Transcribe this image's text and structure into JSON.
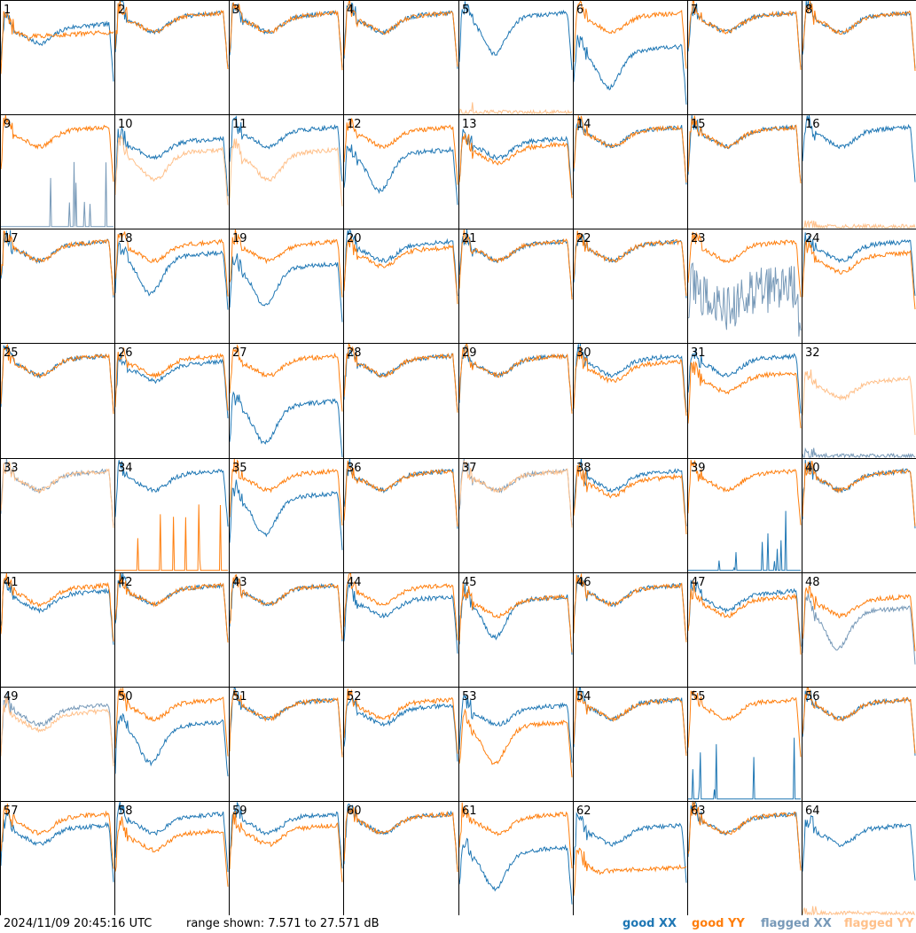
{
  "chart_data": {
    "type": "line",
    "panel_count": 64,
    "panel_labels": [
      "1",
      "2",
      "3",
      "4",
      "5",
      "6",
      "7",
      "8",
      "9",
      "10",
      "11",
      "12",
      "13",
      "14",
      "15",
      "16",
      "17",
      "18",
      "19",
      "20",
      "21",
      "22",
      "23",
      "24",
      "25",
      "26",
      "27",
      "28",
      "29",
      "30",
      "31",
      "32",
      "33",
      "34",
      "35",
      "36",
      "37",
      "38",
      "39",
      "40",
      "41",
      "42",
      "43",
      "44",
      "45",
      "46",
      "47",
      "48",
      "49",
      "50",
      "51",
      "52",
      "53",
      "54",
      "55",
      "56",
      "57",
      "58",
      "59",
      "60",
      "61",
      "62",
      "63",
      "64"
    ],
    "series_names": [
      "good XX",
      "good YY",
      "flagged XX",
      "flagged YY"
    ],
    "ylim": [
      7.571,
      27.571
    ],
    "y_unit": "dB",
    "panels": [
      {
        "xx": {
          "st": "g",
          "p": "norm",
          "l": 22
        },
        "yy": {
          "st": "g",
          "p": "crash",
          "l": 22
        }
      },
      {
        "xx": {
          "st": "g",
          "p": "norm",
          "l": 24
        },
        "yy": {
          "st": "g",
          "p": "norm",
          "l": 24
        }
      },
      {
        "xx": {
          "st": "g",
          "p": "norm",
          "l": 24
        },
        "yy": {
          "st": "g",
          "p": "norm",
          "l": 24
        }
      },
      {
        "xx": {
          "st": "g",
          "p": "norm",
          "l": 24
        },
        "yy": {
          "st": "g",
          "p": "norm",
          "l": 24
        }
      },
      {
        "xx": {
          "st": "g",
          "p": "dip",
          "l": 24
        },
        "yy": {
          "st": "f",
          "p": "low",
          "l": 8
        }
      },
      {
        "xx": {
          "st": "g",
          "p": "dip",
          "l": 18
        },
        "yy": {
          "st": "g",
          "p": "norm",
          "l": 24
        }
      },
      {
        "xx": {
          "st": "g",
          "p": "norm",
          "l": 24
        },
        "yy": {
          "st": "g",
          "p": "norm",
          "l": 24
        }
      },
      {
        "xx": {
          "st": "g",
          "p": "norm",
          "l": 24
        },
        "yy": {
          "st": "g",
          "p": "norm",
          "l": 24
        }
      },
      {
        "xx": {
          "st": "f",
          "p": "spikes",
          "l": 8
        },
        "yy": {
          "st": "g",
          "p": "norm",
          "l": 24
        }
      },
      {
        "xx": {
          "st": "g",
          "p": "norm",
          "l": 22
        },
        "yy": {
          "st": "f",
          "p": "sag",
          "l": 20
        }
      },
      {
        "xx": {
          "st": "g",
          "p": "norm",
          "l": 24
        },
        "yy": {
          "st": "f",
          "p": "sag",
          "l": 20
        }
      },
      {
        "xx": {
          "st": "g",
          "p": "dip",
          "l": 20
        },
        "yy": {
          "st": "g",
          "p": "norm",
          "l": 24
        }
      },
      {
        "xx": {
          "st": "g",
          "p": "norm",
          "l": 22
        },
        "yy": {
          "st": "g",
          "p": "norm",
          "l": 21
        }
      },
      {
        "xx": {
          "st": "g",
          "p": "norm",
          "l": 24
        },
        "yy": {
          "st": "g",
          "p": "norm",
          "l": 24
        }
      },
      {
        "xx": {
          "st": "g",
          "p": "norm",
          "l": 24
        },
        "yy": {
          "st": "g",
          "p": "norm",
          "l": 24
        }
      },
      {
        "xx": {
          "st": "g",
          "p": "norm",
          "l": 24
        },
        "yy": {
          "st": "f",
          "p": "low",
          "l": 8
        }
      },
      {
        "xx": {
          "st": "g",
          "p": "norm",
          "l": 24
        },
        "yy": {
          "st": "g",
          "p": "norm",
          "l": 24
        }
      },
      {
        "xx": {
          "st": "g",
          "p": "dip",
          "l": 22
        },
        "yy": {
          "st": "g",
          "p": "norm",
          "l": 24
        }
      },
      {
        "xx": {
          "st": "g",
          "p": "dip",
          "l": 20
        },
        "yy": {
          "st": "g",
          "p": "norm",
          "l": 24
        }
      },
      {
        "xx": {
          "st": "g",
          "p": "norm",
          "l": 24
        },
        "yy": {
          "st": "g",
          "p": "norm",
          "l": 23
        }
      },
      {
        "xx": {
          "st": "g",
          "p": "norm",
          "l": 24
        },
        "yy": {
          "st": "g",
          "p": "norm",
          "l": 24
        }
      },
      {
        "xx": {
          "st": "g",
          "p": "norm",
          "l": 24
        },
        "yy": {
          "st": "g",
          "p": "norm",
          "l": 24
        }
      },
      {
        "xx": {
          "st": "f",
          "p": "noisy",
          "l": 16
        },
        "yy": {
          "st": "g",
          "p": "norm",
          "l": 24
        }
      },
      {
        "xx": {
          "st": "g",
          "p": "norm",
          "l": 24
        },
        "yy": {
          "st": "g",
          "p": "norm",
          "l": 22
        }
      },
      {
        "xx": {
          "st": "g",
          "p": "norm",
          "l": 24
        },
        "yy": {
          "st": "g",
          "p": "norm",
          "l": 24
        }
      },
      {
        "xx": {
          "st": "g",
          "p": "norm",
          "l": 23
        },
        "yy": {
          "st": "g",
          "p": "norm",
          "l": 24
        }
      },
      {
        "xx": {
          "st": "g",
          "p": "dip",
          "l": 16
        },
        "yy": {
          "st": "g",
          "p": "norm",
          "l": 24
        }
      },
      {
        "xx": {
          "st": "g",
          "p": "norm",
          "l": 24
        },
        "yy": {
          "st": "g",
          "p": "norm",
          "l": 24
        }
      },
      {
        "xx": {
          "st": "g",
          "p": "norm",
          "l": 24
        },
        "yy": {
          "st": "g",
          "p": "norm",
          "l": 24
        }
      },
      {
        "xx": {
          "st": "g",
          "p": "norm",
          "l": 24
        },
        "yy": {
          "st": "g",
          "p": "norm",
          "l": 23
        }
      },
      {
        "xx": {
          "st": "g",
          "p": "norm",
          "l": 24
        },
        "yy": {
          "st": "g",
          "p": "norm",
          "l": 21
        }
      },
      {
        "xx": {
          "st": "f",
          "p": "low",
          "l": 8
        },
        "yy": {
          "st": "f",
          "p": "norm",
          "l": 20
        }
      },
      {
        "xx": {
          "st": "f",
          "p": "norm",
          "l": 24
        },
        "yy": {
          "st": "f",
          "p": "norm",
          "l": 24
        }
      },
      {
        "xx": {
          "st": "g",
          "p": "norm",
          "l": 24
        },
        "yy": {
          "st": "g",
          "p": "spikes",
          "l": 8
        }
      },
      {
        "xx": {
          "st": "g",
          "p": "dip",
          "l": 20
        },
        "yy": {
          "st": "g",
          "p": "norm",
          "l": 24
        }
      },
      {
        "xx": {
          "st": "g",
          "p": "norm",
          "l": 24
        },
        "yy": {
          "st": "g",
          "p": "norm",
          "l": 24
        }
      },
      {
        "xx": {
          "st": "f",
          "p": "norm",
          "l": 24
        },
        "yy": {
          "st": "f",
          "p": "norm",
          "l": 24
        }
      },
      {
        "xx": {
          "st": "g",
          "p": "norm",
          "l": 24
        },
        "yy": {
          "st": "g",
          "p": "norm",
          "l": 23
        }
      },
      {
        "xx": {
          "st": "g",
          "p": "spikes",
          "l": 8
        },
        "yy": {
          "st": "g",
          "p": "norm",
          "l": 24
        }
      },
      {
        "xx": {
          "st": "g",
          "p": "norm",
          "l": 24
        },
        "yy": {
          "st": "g",
          "p": "norm",
          "l": 24
        }
      },
      {
        "xx": {
          "st": "g",
          "p": "norm",
          "l": 23
        },
        "yy": {
          "st": "g",
          "p": "norm",
          "l": 24
        }
      },
      {
        "xx": {
          "st": "g",
          "p": "norm",
          "l": 24
        },
        "yy": {
          "st": "g",
          "p": "norm",
          "l": 24
        }
      },
      {
        "xx": {
          "st": "g",
          "p": "norm",
          "l": 24
        },
        "yy": {
          "st": "g",
          "p": "norm",
          "l": 24
        }
      },
      {
        "xx": {
          "st": "g",
          "p": "norm",
          "l": 22
        },
        "yy": {
          "st": "g",
          "p": "norm",
          "l": 24
        }
      },
      {
        "xx": {
          "st": "g",
          "p": "dip",
          "l": 22
        },
        "yy": {
          "st": "g",
          "p": "norm",
          "l": 22
        }
      },
      {
        "xx": {
          "st": "g",
          "p": "norm",
          "l": 24
        },
        "yy": {
          "st": "g",
          "p": "norm",
          "l": 24
        }
      },
      {
        "xx": {
          "st": "g",
          "p": "norm",
          "l": 23
        },
        "yy": {
          "st": "g",
          "p": "norm",
          "l": 22
        }
      },
      {
        "xx": {
          "st": "f",
          "p": "dip",
          "l": 20
        },
        "yy": {
          "st": "g",
          "p": "norm",
          "l": 22
        }
      },
      {
        "xx": {
          "st": "f",
          "p": "norm",
          "l": 23
        },
        "yy": {
          "st": "f",
          "p": "norm",
          "l": 22
        }
      },
      {
        "xx": {
          "st": "g",
          "p": "dip",
          "l": 20
        },
        "yy": {
          "st": "g",
          "p": "norm",
          "l": 24
        }
      },
      {
        "xx": {
          "st": "g",
          "p": "norm",
          "l": 24
        },
        "yy": {
          "st": "g",
          "p": "norm",
          "l": 24
        }
      },
      {
        "xx": {
          "st": "g",
          "p": "norm",
          "l": 23
        },
        "yy": {
          "st": "g",
          "p": "norm",
          "l": 24
        }
      },
      {
        "xx": {
          "st": "g",
          "p": "norm",
          "l": 23
        },
        "yy": {
          "st": "g",
          "p": "dip",
          "l": 20
        }
      },
      {
        "xx": {
          "st": "g",
          "p": "norm",
          "l": 24
        },
        "yy": {
          "st": "g",
          "p": "norm",
          "l": 24
        }
      },
      {
        "xx": {
          "st": "g",
          "p": "spikes",
          "l": 10
        },
        "yy": {
          "st": "g",
          "p": "norm",
          "l": 24
        }
      },
      {
        "xx": {
          "st": "g",
          "p": "norm",
          "l": 24
        },
        "yy": {
          "st": "g",
          "p": "norm",
          "l": 24
        }
      },
      {
        "xx": {
          "st": "g",
          "p": "norm",
          "l": 22
        },
        "yy": {
          "st": "g",
          "p": "norm",
          "l": 24
        }
      },
      {
        "xx": {
          "st": "g",
          "p": "norm",
          "l": 24
        },
        "yy": {
          "st": "g",
          "p": "norm",
          "l": 21
        }
      },
      {
        "xx": {
          "st": "g",
          "p": "norm",
          "l": 24
        },
        "yy": {
          "st": "g",
          "p": "norm",
          "l": 22
        }
      },
      {
        "xx": {
          "st": "g",
          "p": "norm",
          "l": 24
        },
        "yy": {
          "st": "g",
          "p": "norm",
          "l": 24
        }
      },
      {
        "xx": {
          "st": "g",
          "p": "dip",
          "l": 18
        },
        "yy": {
          "st": "g",
          "p": "norm",
          "l": 24
        }
      },
      {
        "xx": {
          "st": "g",
          "p": "norm",
          "l": 22
        },
        "yy": {
          "st": "g",
          "p": "crash",
          "l": 16
        }
      },
      {
        "xx": {
          "st": "g",
          "p": "norm",
          "l": 24
        },
        "yy": {
          "st": "g",
          "p": "norm",
          "l": 24
        }
      },
      {
        "xx": {
          "st": "g",
          "p": "norm",
          "l": 22
        },
        "yy": {
          "st": "f",
          "p": "low",
          "l": 8
        }
      }
    ],
    "colors": {
      "good_xx": "#1f77b4",
      "good_yy": "#ff7f0e",
      "flagged_xx": "#7799b8",
      "flagged_yy": "#ffc08a"
    }
  },
  "footer": {
    "timestamp": "2024/11/09 20:45:16 UTC",
    "range": "range shown: 7.571 to 27.571 dB",
    "legend_good_xx": "good XX",
    "legend_good_yy": "good YY",
    "legend_flagged_xx": "flagged XX",
    "legend_flagged_yy": "flagged YY"
  }
}
